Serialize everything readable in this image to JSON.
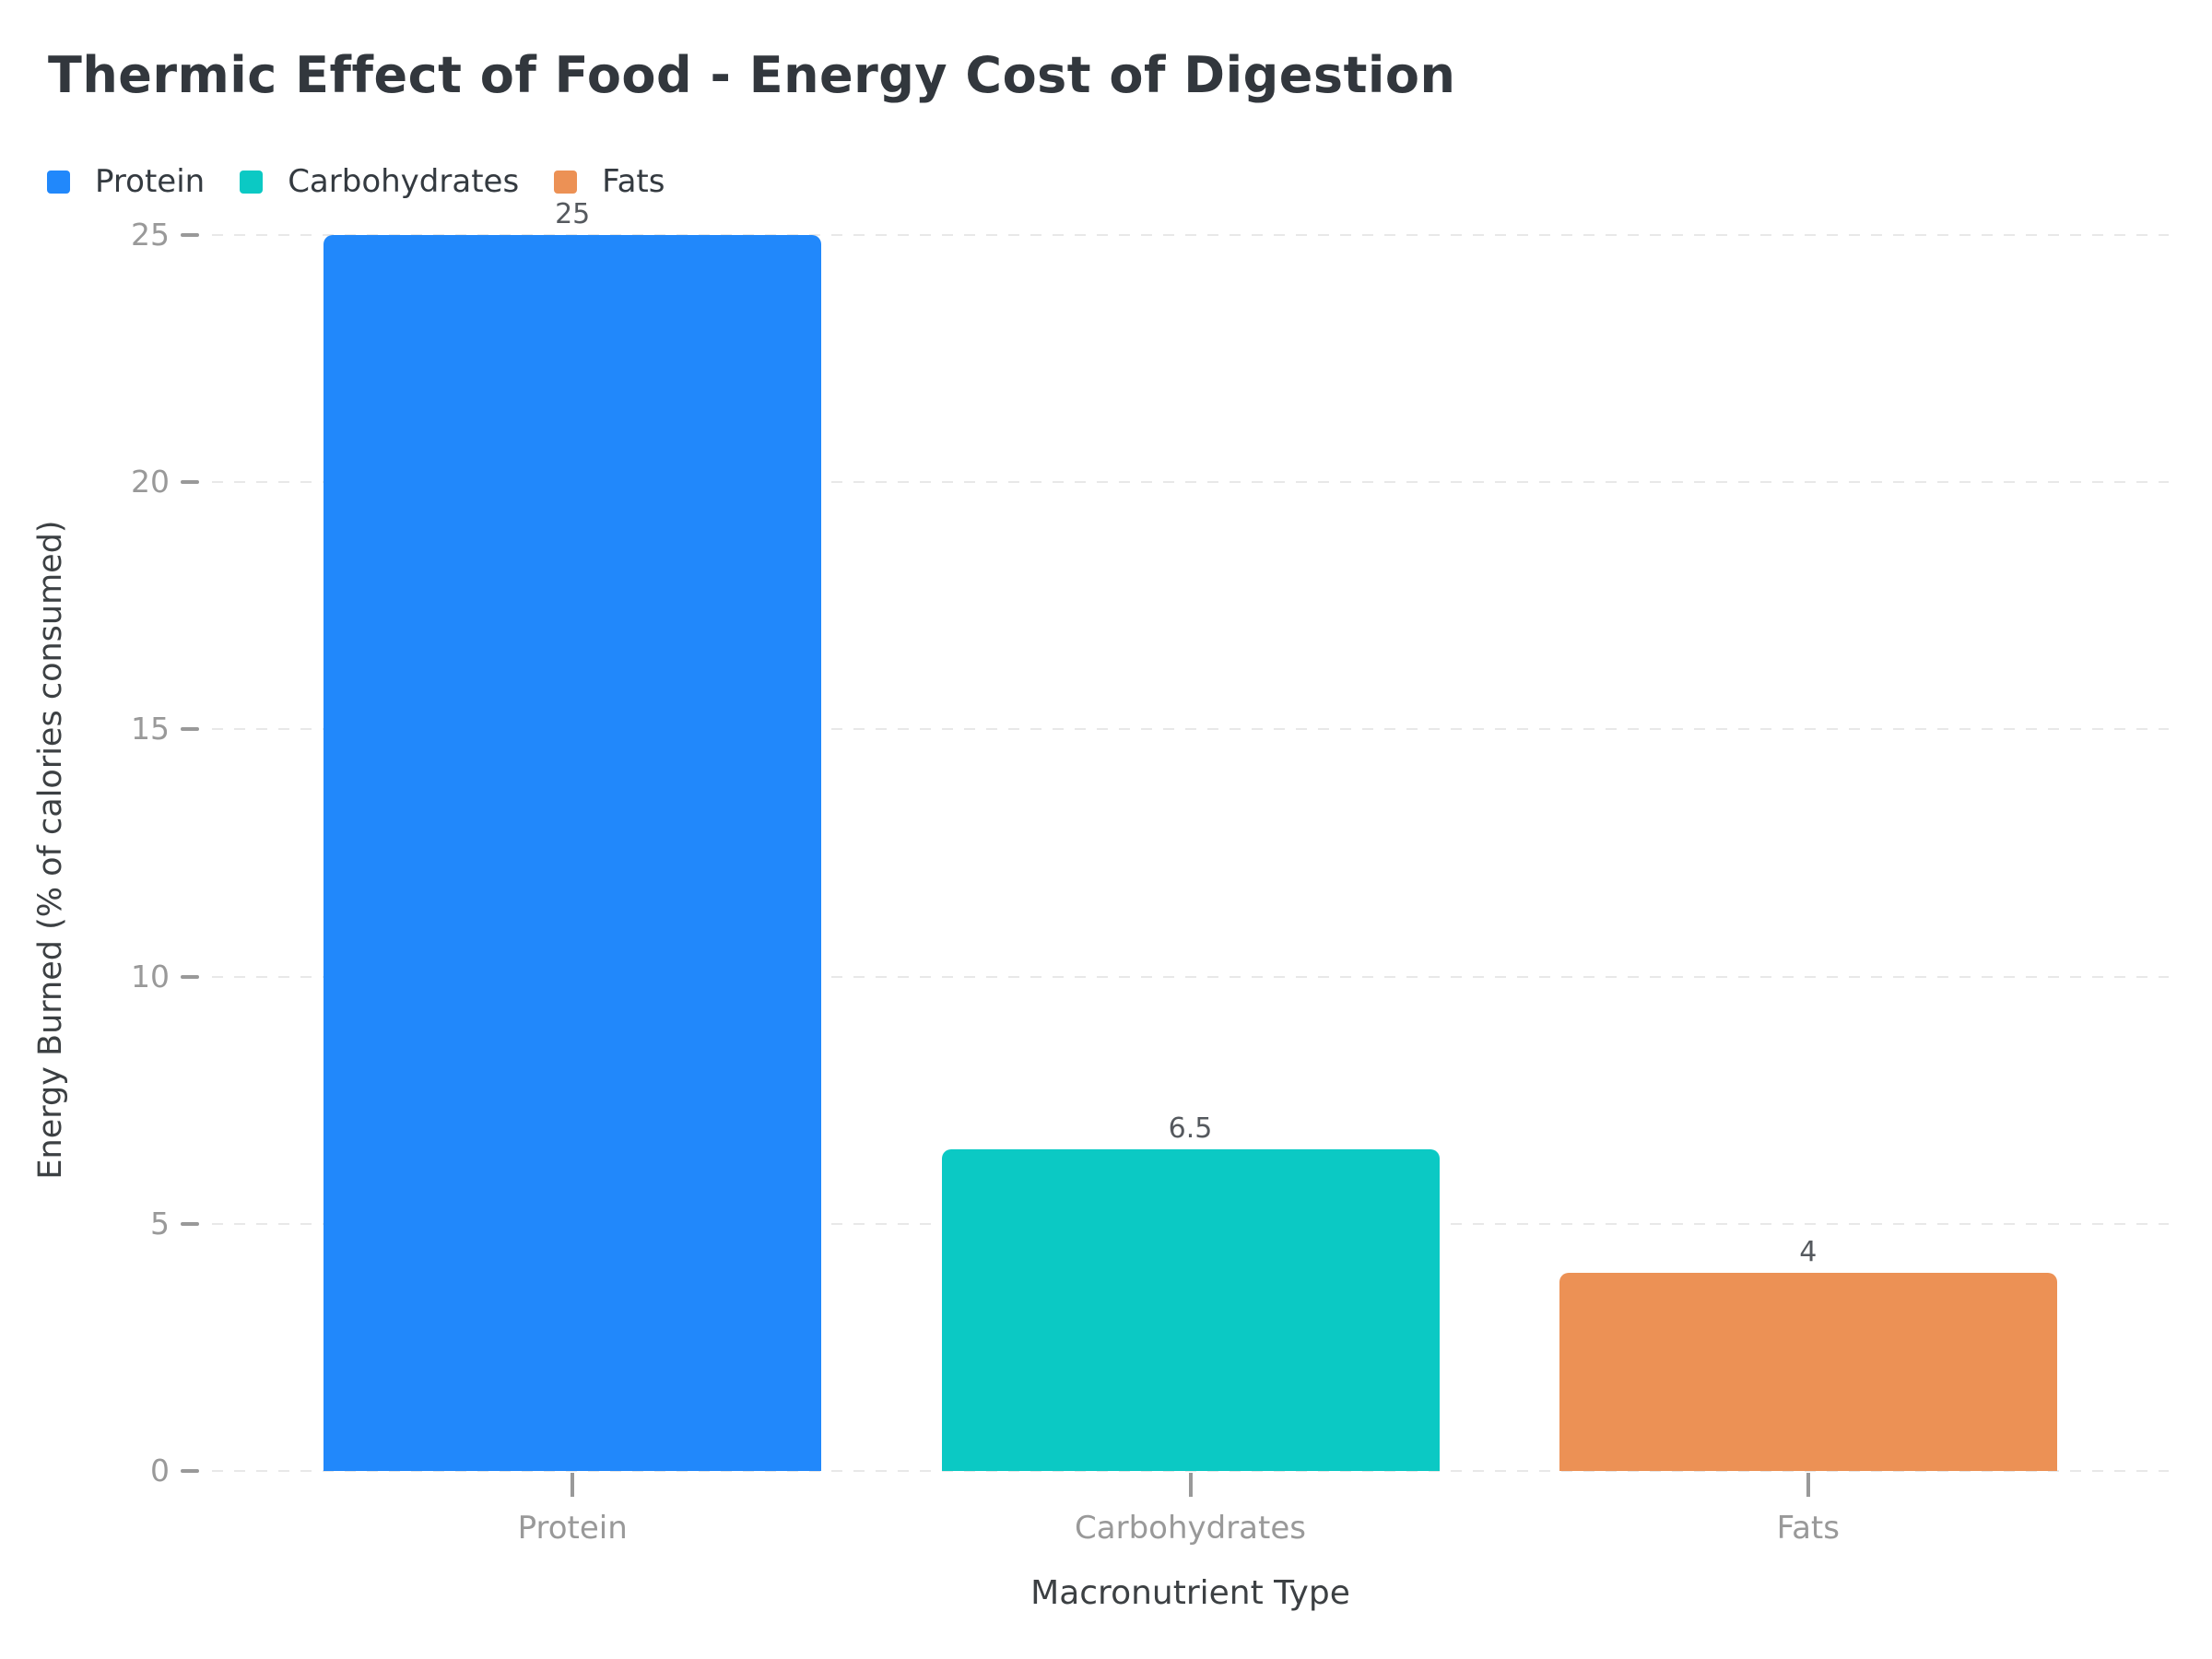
{
  "chart_data": {
    "type": "bar",
    "title": "Thermic Effect of Food - Energy Cost of Digestion",
    "xlabel": "Macronutrient Type",
    "ylabel": "Energy Burned (% of calories consumed)",
    "categories": [
      "Protein",
      "Carbohydrates",
      "Fats"
    ],
    "values": [
      25,
      6.5,
      4
    ],
    "value_labels": [
      "25",
      "6.5",
      "4"
    ],
    "series_colors": [
      "#2188fb",
      "#0bc9c4",
      "#ec9155"
    ],
    "ylim": [
      0,
      25
    ],
    "yticks": [
      0,
      5,
      10,
      15,
      20,
      25
    ],
    "grid": "horizontal-dashed",
    "background": "#ffffff",
    "legend_position": "top-left",
    "legend": [
      {
        "label": "Protein",
        "color": "#2188fb"
      },
      {
        "label": "Carbohydrates",
        "color": "#0bc9c4"
      },
      {
        "label": "Fats",
        "color": "#ec9155"
      }
    ]
  }
}
